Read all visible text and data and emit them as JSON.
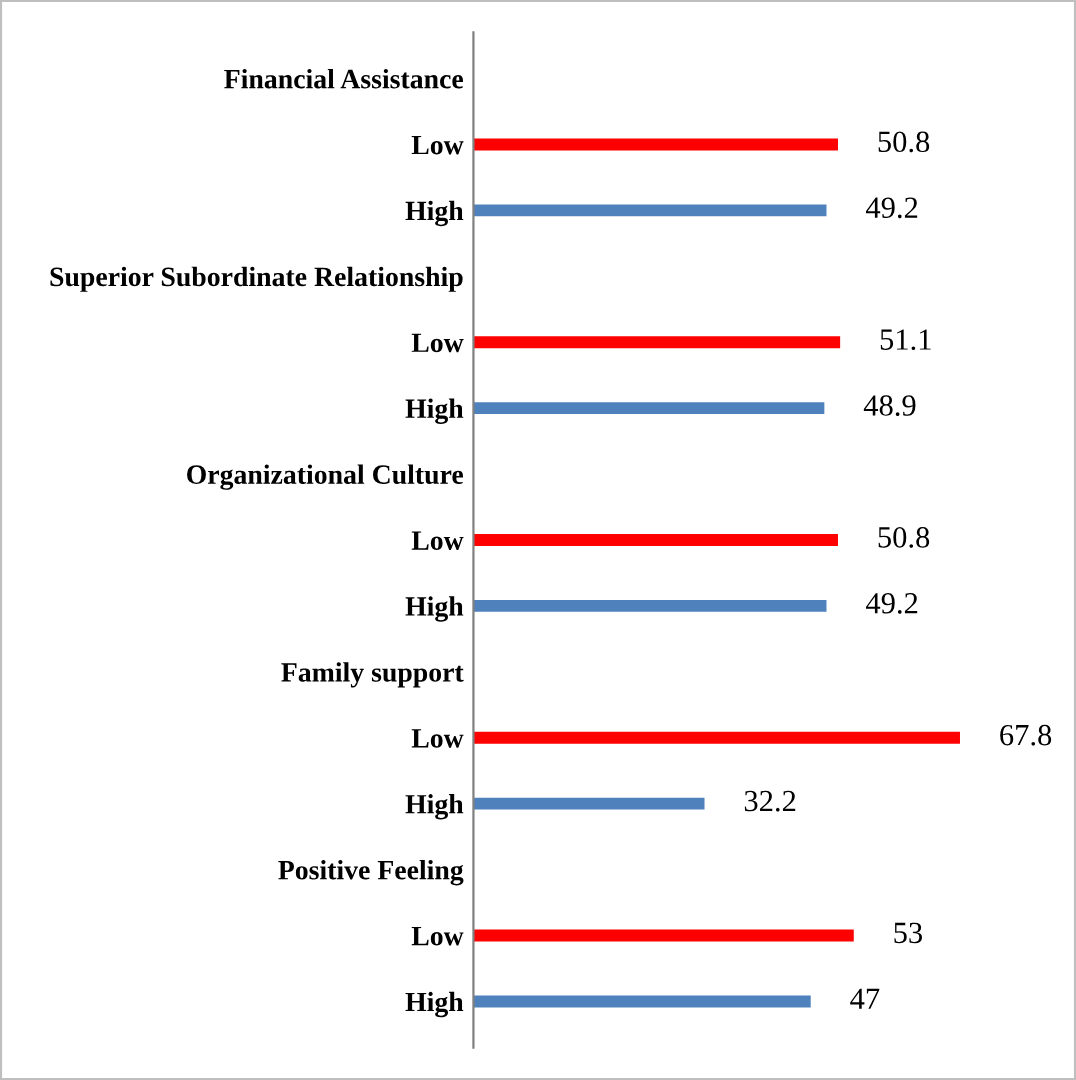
{
  "chart_data": {
    "type": "bar",
    "orientation": "horizontal",
    "data_labels": true,
    "tick_labels": "y",
    "grid": false,
    "categories": [
      "Financial Assistance",
      "Low",
      "High",
      "Superior Subordinate Relationship",
      "Low",
      "High",
      "Organizational Culture",
      "Low",
      "High",
      "Family support",
      "Low",
      "High",
      "Positive Feeling",
      "Low",
      "High"
    ],
    "values": [
      null,
      50.8,
      49.2,
      null,
      51.1,
      48.9,
      null,
      50.8,
      49.2,
      null,
      67.8,
      32.2,
      null,
      53,
      47
    ],
    "colors": [
      null,
      "#ff0000",
      "#4f81bd",
      null,
      "#ff0000",
      "#4f81bd",
      null,
      "#ff0000",
      "#4f81bd",
      null,
      "#ff0000",
      "#4f81bd",
      null,
      "#ff0000",
      "#4f81bd"
    ]
  }
}
